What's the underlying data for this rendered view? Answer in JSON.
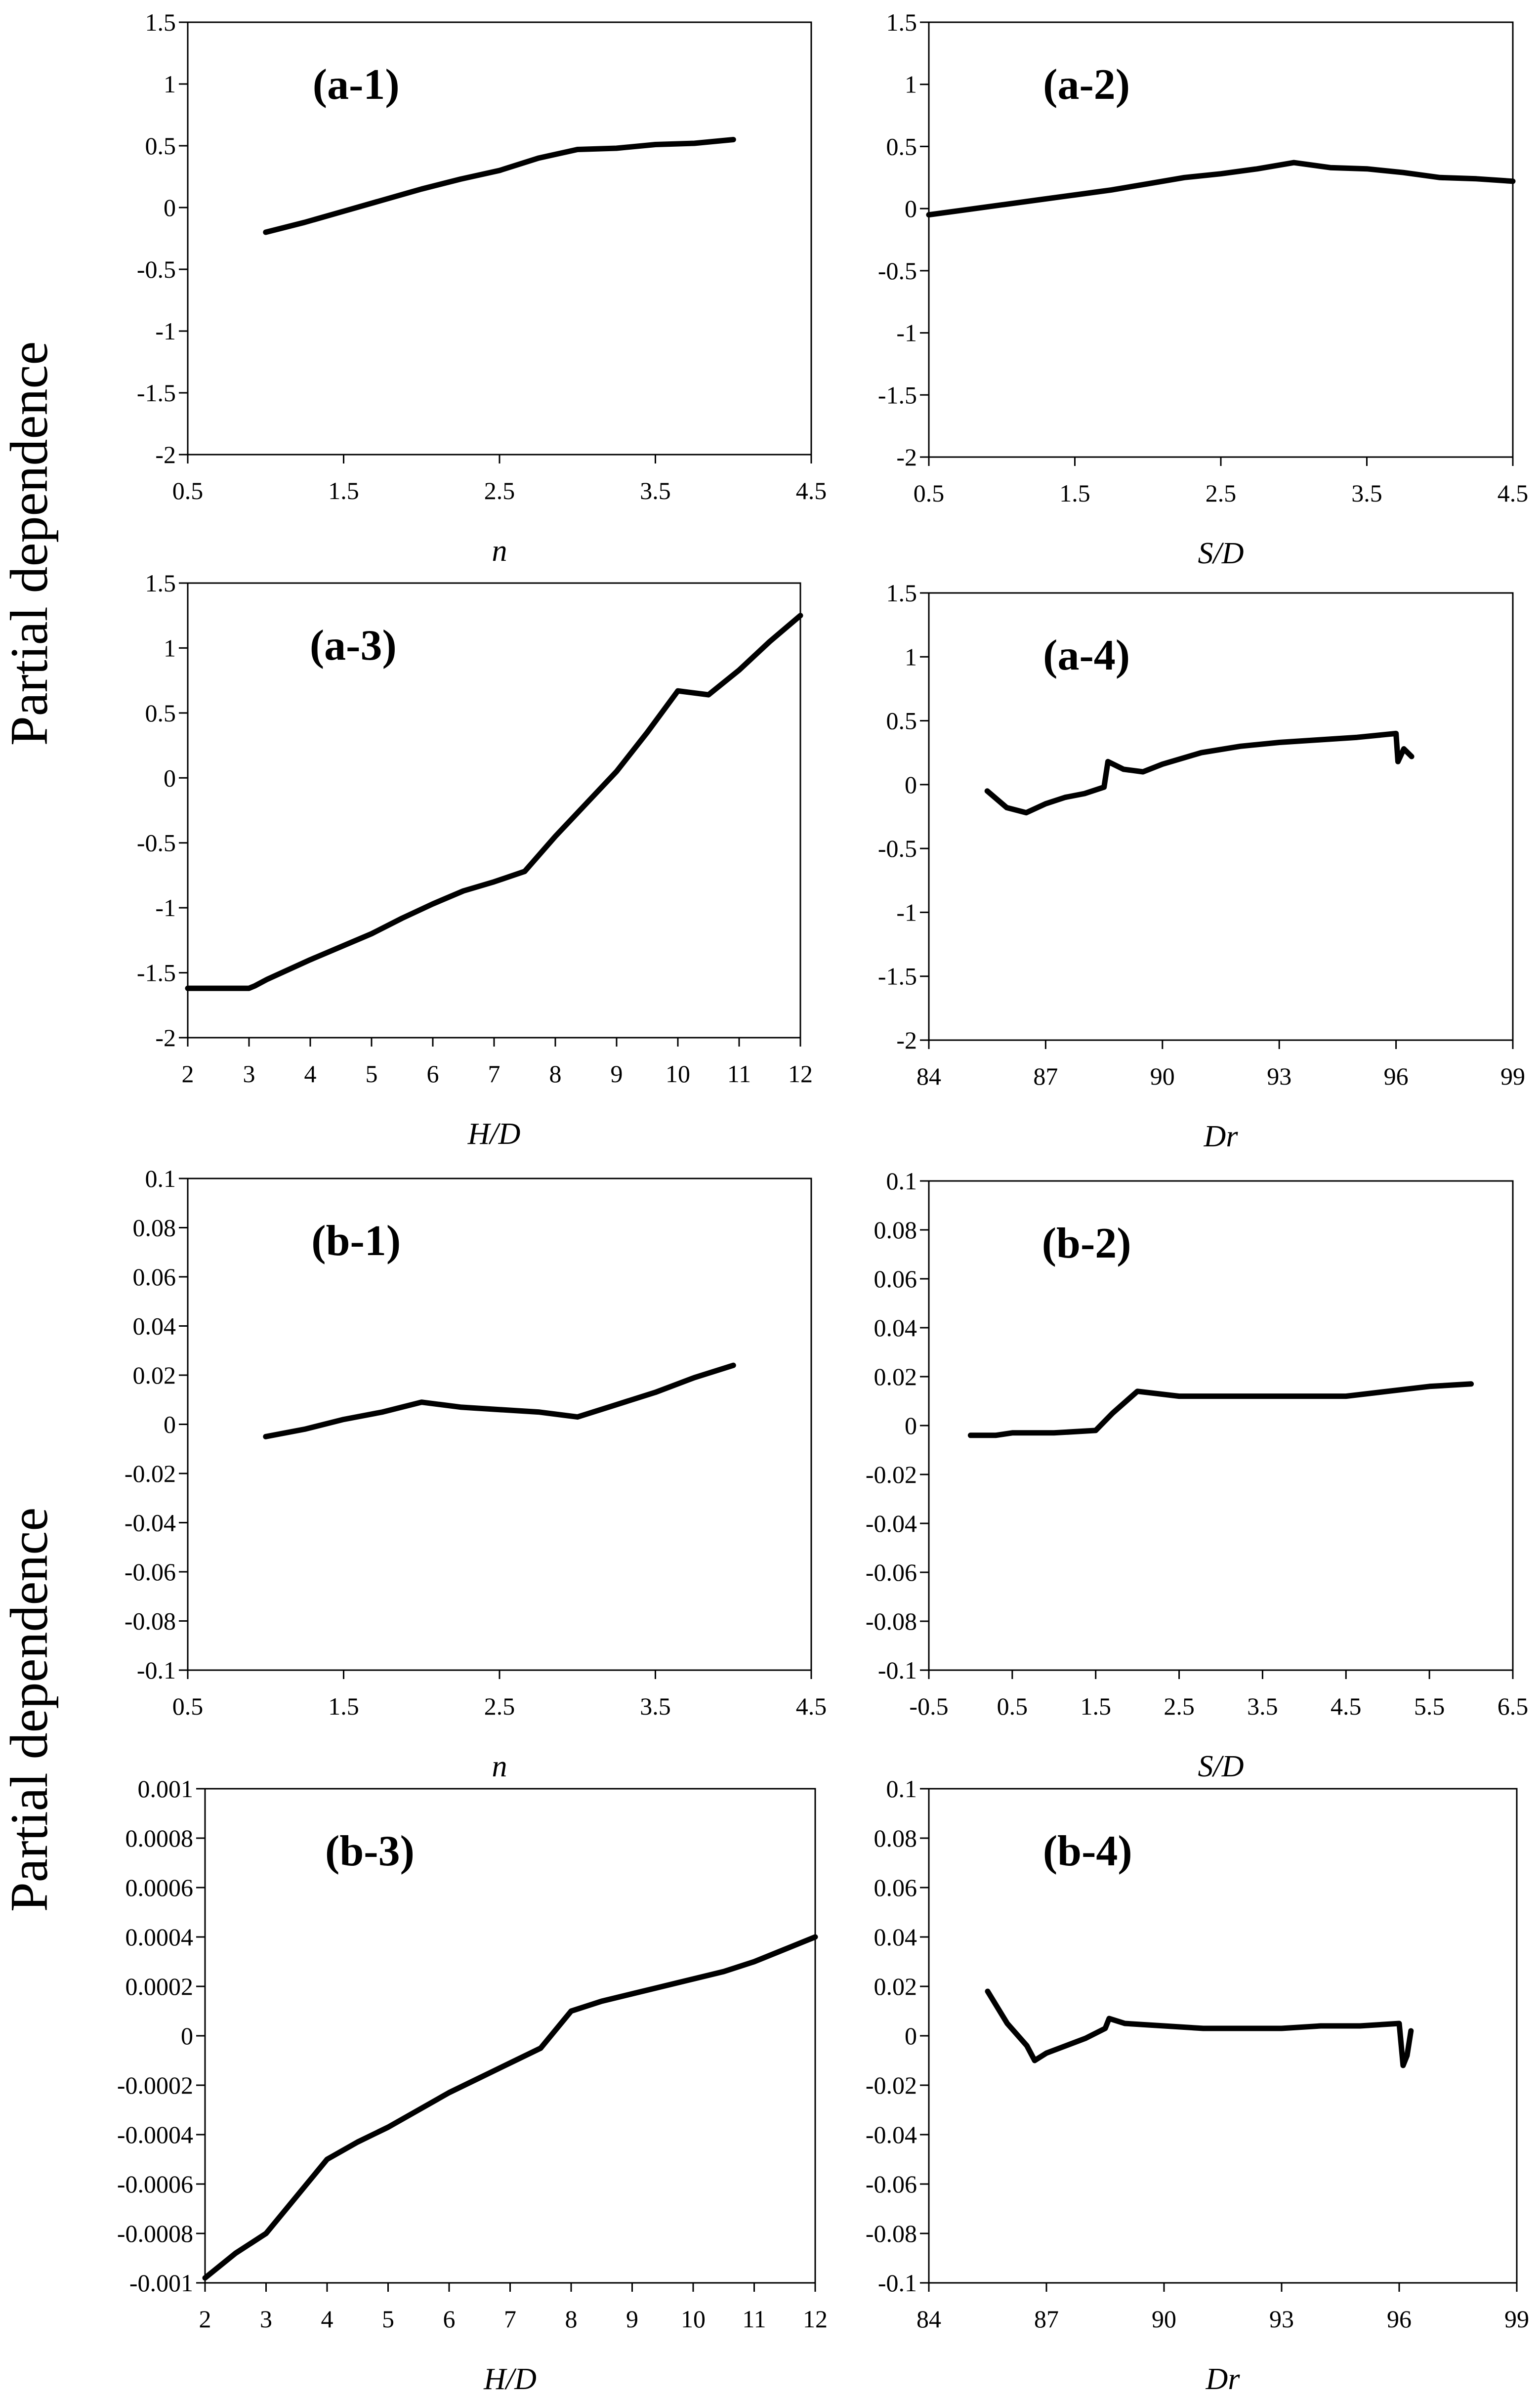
{
  "figure": {
    "ylabels": [
      "Partial dependence",
      "Partial dependence"
    ]
  },
  "chart_data": [
    {
      "id": "a-1",
      "type": "line",
      "title": "(a-1)",
      "xlabel": "n",
      "ylabel": "Partial dependence",
      "xlim": [
        0.5,
        4.5
      ],
      "ylim": [
        -2,
        1.5
      ],
      "xticks": [
        "0.5",
        "1.5",
        "2.5",
        "3.5",
        "4.5"
      ],
      "yticks": [
        "-2",
        "-1.5",
        "-1",
        "-0.5",
        "0",
        "0.5",
        "1",
        "1.5"
      ],
      "x": [
        1.0,
        1.25,
        1.5,
        1.75,
        2.0,
        2.25,
        2.5,
        2.75,
        3.0,
        3.25,
        3.5,
        3.75,
        4.0
      ],
      "y": [
        -0.2,
        -0.12,
        -0.03,
        0.06,
        0.15,
        0.23,
        0.3,
        0.4,
        0.47,
        0.48,
        0.51,
        0.52,
        0.55
      ]
    },
    {
      "id": "a-2",
      "type": "line",
      "title": "(a-2)",
      "xlabel": "S/D",
      "ylabel": "",
      "xlim": [
        0.5,
        4.5
      ],
      "ylim": [
        -2,
        1.5
      ],
      "xticks": [
        "0.5",
        "1.5",
        "2.5",
        "3.5",
        "4.5"
      ],
      "yticks": [
        "-2",
        "-1.5",
        "-1",
        "-0.5",
        "0",
        "0.5",
        "1",
        "1.5"
      ],
      "x": [
        0.5,
        0.75,
        1.0,
        1.25,
        1.5,
        1.75,
        2.0,
        2.25,
        2.5,
        2.75,
        3.0,
        3.25,
        3.5,
        3.75,
        4.0,
        4.25,
        4.5
      ],
      "y": [
        -0.05,
        -0.01,
        0.03,
        0.07,
        0.11,
        0.15,
        0.2,
        0.25,
        0.28,
        0.32,
        0.37,
        0.33,
        0.32,
        0.29,
        0.25,
        0.24,
        0.22
      ]
    },
    {
      "id": "a-3",
      "type": "line",
      "title": "(a-3)",
      "xlabel": "H/D",
      "ylabel": "Partial dependence",
      "xlim": [
        2,
        12
      ],
      "ylim": [
        -2,
        1.5
      ],
      "xticks": [
        "2",
        "3",
        "4",
        "5",
        "6",
        "7",
        "8",
        "9",
        "10",
        "11",
        "12"
      ],
      "yticks": [
        "-2",
        "-1.5",
        "-1",
        "-0.5",
        "0",
        "0.5",
        "1",
        "1.5"
      ],
      "x": [
        2.0,
        2.5,
        3.0,
        3.1,
        3.3,
        4.0,
        5.0,
        5.5,
        6.0,
        6.5,
        7.0,
        7.5,
        8.0,
        8.5,
        9.0,
        9.5,
        10.0,
        10.5,
        11.0,
        11.5,
        12.0
      ],
      "y": [
        -1.62,
        -1.62,
        -1.62,
        -1.6,
        -1.55,
        -1.4,
        -1.2,
        -1.08,
        -0.97,
        -0.87,
        -0.8,
        -0.72,
        -0.45,
        -0.2,
        0.05,
        0.35,
        0.67,
        0.64,
        0.83,
        1.05,
        1.25
      ]
    },
    {
      "id": "a-4",
      "type": "line",
      "title": "(a-4)",
      "xlabel": "Dr",
      "ylabel": "",
      "xlim": [
        84,
        99
      ],
      "ylim": [
        -2,
        1.5
      ],
      "xticks": [
        "84",
        "87",
        "90",
        "93",
        "96",
        "99"
      ],
      "yticks": [
        "-2",
        "-1.5",
        "-1",
        "-0.5",
        "0",
        "0.5",
        "1",
        "1.5"
      ],
      "x": [
        85.5,
        86.0,
        86.5,
        87.0,
        87.5,
        88.0,
        88.5,
        88.6,
        89.0,
        89.5,
        90.0,
        91.0,
        92.0,
        93.0,
        94.0,
        95.0,
        96.0,
        96.05,
        96.2,
        96.4
      ],
      "y": [
        -0.05,
        -0.18,
        -0.22,
        -0.15,
        -0.1,
        -0.07,
        -0.02,
        0.18,
        0.12,
        0.1,
        0.16,
        0.25,
        0.3,
        0.33,
        0.35,
        0.37,
        0.4,
        0.18,
        0.28,
        0.22
      ]
    },
    {
      "id": "b-1",
      "type": "line",
      "title": "(b-1)",
      "xlabel": "n",
      "ylabel": "Partial dependence",
      "xlim": [
        0.5,
        4.5
      ],
      "ylim": [
        -0.1,
        0.1
      ],
      "xticks": [
        "0.5",
        "1.5",
        "2.5",
        "3.5",
        "4.5"
      ],
      "yticks": [
        "-0.1",
        "-0.08",
        "-0.06",
        "-0.04",
        "-0.02",
        "0",
        "0.02",
        "0.04",
        "0.06",
        "0.08",
        "0.1"
      ],
      "x": [
        1.0,
        1.25,
        1.5,
        1.75,
        2.0,
        2.25,
        2.5,
        2.75,
        3.0,
        3.25,
        3.5,
        3.75,
        4.0
      ],
      "y": [
        -0.005,
        -0.002,
        0.002,
        0.005,
        0.009,
        0.007,
        0.006,
        0.005,
        0.003,
        0.008,
        0.013,
        0.019,
        0.024
      ]
    },
    {
      "id": "b-2",
      "type": "line",
      "title": "(b-2)",
      "xlabel": "S/D",
      "ylabel": "",
      "xlim": [
        -0.5,
        6.5
      ],
      "ylim": [
        -0.1,
        0.1
      ],
      "xticks": [
        "-0.5",
        "0.5",
        "1.5",
        "2.5",
        "3.5",
        "4.5",
        "5.5",
        "6.5"
      ],
      "yticks": [
        "-0.1",
        "-0.08",
        "-0.06",
        "-0.04",
        "-0.02",
        "0",
        "0.02",
        "0.04",
        "0.06",
        "0.08",
        "0.1"
      ],
      "x": [
        0.0,
        0.3,
        0.5,
        1.0,
        1.5,
        1.7,
        2.0,
        2.5,
        3.0,
        3.5,
        4.0,
        4.5,
        5.0,
        5.5,
        6.0
      ],
      "y": [
        -0.004,
        -0.004,
        -0.003,
        -0.003,
        -0.002,
        0.005,
        0.014,
        0.012,
        0.012,
        0.012,
        0.012,
        0.012,
        0.014,
        0.016,
        0.017
      ]
    },
    {
      "id": "b-3",
      "type": "line",
      "title": "(b-3)",
      "xlabel": "H/D",
      "ylabel": "Partial dependence",
      "xlim": [
        2,
        12
      ],
      "ylim": [
        -0.001,
        0.001
      ],
      "xticks": [
        "2",
        "3",
        "4",
        "5",
        "6",
        "7",
        "8",
        "9",
        "10",
        "11",
        "12"
      ],
      "yticks": [
        "-0.001",
        "-0.0008",
        "-0.0006",
        "-0.0004",
        "-0.0002",
        "0",
        "0.0002",
        "0.0004",
        "0.0006",
        "0.0008",
        "0.001"
      ],
      "x": [
        2.0,
        2.5,
        3.0,
        3.5,
        4.0,
        4.5,
        5.0,
        5.5,
        6.0,
        6.5,
        7.0,
        7.5,
        8.0,
        8.5,
        9.0,
        9.5,
        10.0,
        10.5,
        11.0,
        11.5,
        12.0
      ],
      "y": [
        -0.00098,
        -0.00088,
        -0.0008,
        -0.00065,
        -0.0005,
        -0.00043,
        -0.00037,
        -0.0003,
        -0.00023,
        -0.00017,
        -0.00011,
        -5e-05,
        0.0001,
        0.00014,
        0.00017,
        0.0002,
        0.00023,
        0.00026,
        0.0003,
        0.00035,
        0.0004
      ]
    },
    {
      "id": "b-4",
      "type": "line",
      "title": "(b-4)",
      "xlabel": "Dr",
      "ylabel": "",
      "xlim": [
        84,
        99
      ],
      "ylim": [
        -0.1,
        0.1
      ],
      "xticks": [
        "84",
        "87",
        "90",
        "93",
        "96",
        "99"
      ],
      "yticks": [
        "-0.1",
        "-0.08",
        "-0.06",
        "-0.04",
        "-0.02",
        "0",
        "0.02",
        "0.04",
        "0.06",
        "0.08",
        "0.1"
      ],
      "x": [
        85.5,
        86.0,
        86.5,
        86.7,
        87.0,
        87.5,
        88.0,
        88.5,
        88.6,
        89.0,
        90.0,
        91.0,
        92.0,
        93.0,
        94.0,
        95.0,
        96.0,
        96.1,
        96.2,
        96.3
      ],
      "y": [
        0.018,
        0.005,
        -0.004,
        -0.01,
        -0.007,
        -0.004,
        -0.001,
        0.003,
        0.007,
        0.005,
        0.004,
        0.003,
        0.003,
        0.003,
        0.004,
        0.004,
        0.005,
        -0.012,
        -0.008,
        0.002
      ]
    }
  ]
}
